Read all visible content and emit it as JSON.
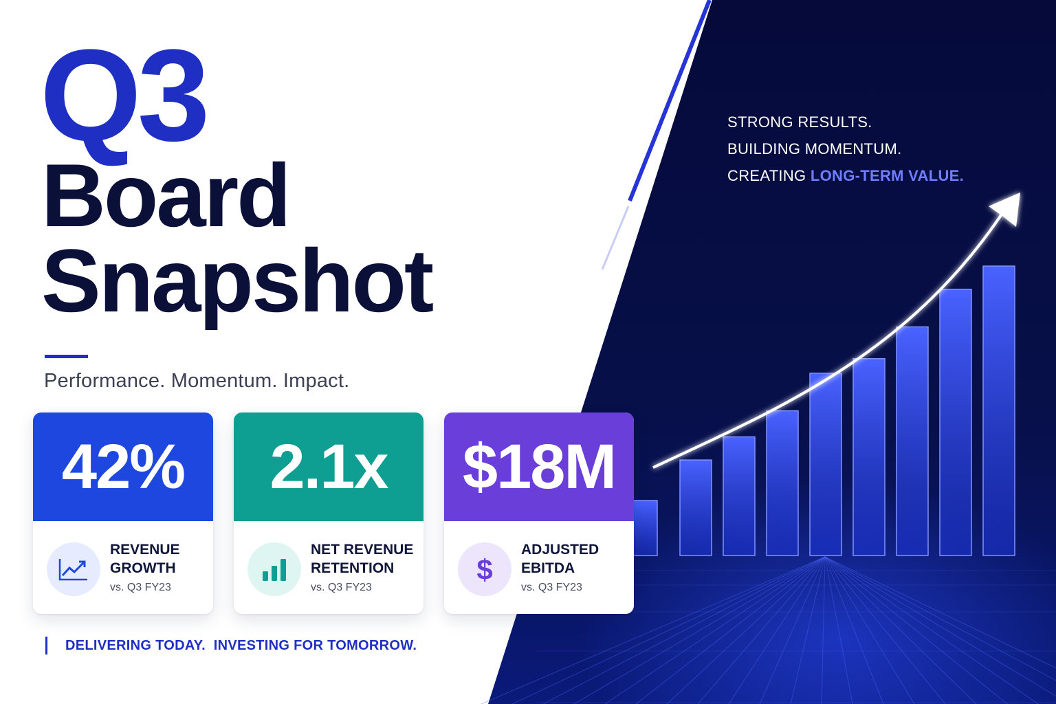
{
  "hero": {
    "quarter": "Q3",
    "title_line1": "Board",
    "title_line2": "Snapshot",
    "subtitle": "Performance. Momentum. Impact."
  },
  "kpis": [
    {
      "value": "42%",
      "label_line1": "REVENUE",
      "label_line2": "GROWTH",
      "comparison": "vs. Q3 FY23",
      "icon": "line-chart-trend-icon",
      "color": "#1e47e0"
    },
    {
      "value": "2.1x",
      "label_line1": "NET REVENUE",
      "label_line2": "RETENTION",
      "comparison": "vs. Q3 FY23",
      "icon": "bar-chart-icon",
      "color": "#0e9e92"
    },
    {
      "value": "$18M",
      "label_line1": "ADJUSTED",
      "label_line2": "EBITDA",
      "comparison": "vs. Q3 FY23",
      "icon": "dollar-sign-icon",
      "color": "#6a3ed8"
    }
  ],
  "tagline": "DELIVERING TODAY.  INVESTING FOR TOMORROW.",
  "right_panel": {
    "line1": "STRONG RESULTS.",
    "line2": "BUILDING MOMENTUM.",
    "line3_prefix": "CREATING ",
    "line3_accent": "LONG-TERM VALUE."
  },
  "colors": {
    "primary_blue": "#1f2fc4",
    "navy": "#0b1038",
    "panel_bg": "#050a3a",
    "accent_text": "#6f7dff"
  },
  "decorative_chart": {
    "bar_levels": [
      0.19,
      0.33,
      0.41,
      0.5,
      0.63,
      0.68,
      0.79,
      0.92,
      1.0
    ],
    "trend": "rising"
  }
}
